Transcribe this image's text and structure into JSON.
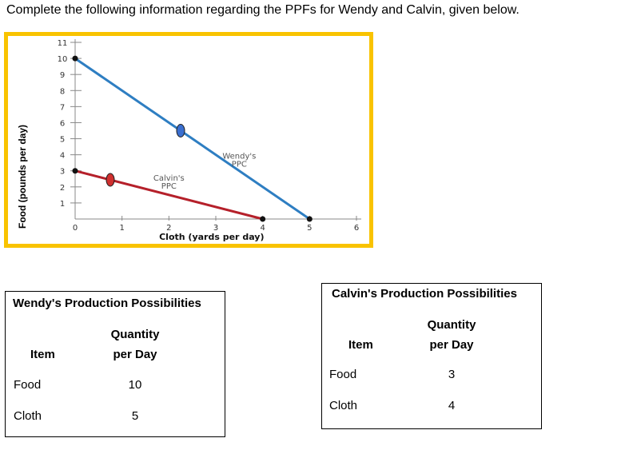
{
  "instruction": "Complete the following information regarding the PPFs for Wendy and Calvin, given below.",
  "chart_data": {
    "type": "line",
    "title": "",
    "xlabel": "Cloth (yards per day)",
    "ylabel": "Food (pounds per day)",
    "xlim": [
      0,
      6
    ],
    "ylim": [
      0,
      11
    ],
    "x_ticks": [
      "0",
      "1",
      "2",
      "3",
      "4",
      "5",
      "6"
    ],
    "y_ticks": [
      "1",
      "2",
      "3",
      "4",
      "5",
      "6",
      "7",
      "8",
      "9",
      "10",
      "11"
    ],
    "grid": false,
    "legend": "none",
    "series": [
      {
        "name": "Wendy's PPC",
        "color": "#2e7ec2",
        "x": [
          0,
          5
        ],
        "y": [
          10,
          0
        ],
        "marker": {
          "x": 2.25,
          "y": 5.5,
          "color": "#3a6fd0"
        }
      },
      {
        "name": "Calvin's PPC",
        "color": "#b5202a",
        "x": [
          0,
          4
        ],
        "y": [
          3,
          0
        ],
        "marker": {
          "x": 0.75,
          "y": 2.44,
          "color": "#d0302f"
        }
      }
    ],
    "annotations": [
      {
        "text": "Wendy's\nPPC",
        "x": 3.5,
        "y": 3.75
      },
      {
        "text": "Calvin's\nPPC",
        "x": 2.0,
        "y": 2.4
      }
    ]
  },
  "wendy_table": {
    "title": "Wendy's Production Possibilities",
    "col_item": "Item",
    "col_qty_1": "Quantity",
    "col_qty_2": "per Day",
    "rows": [
      {
        "item": "Food",
        "qty": "10"
      },
      {
        "item": "Cloth",
        "qty": "5"
      }
    ]
  },
  "calvin_table": {
    "title": "Calvin's Production Possibilities",
    "col_item": "Item",
    "col_qty_1": "Quantity",
    "col_qty_2": "per Day",
    "rows": [
      {
        "item": "Food",
        "qty": "3"
      },
      {
        "item": "Cloth",
        "qty": "4"
      }
    ]
  }
}
